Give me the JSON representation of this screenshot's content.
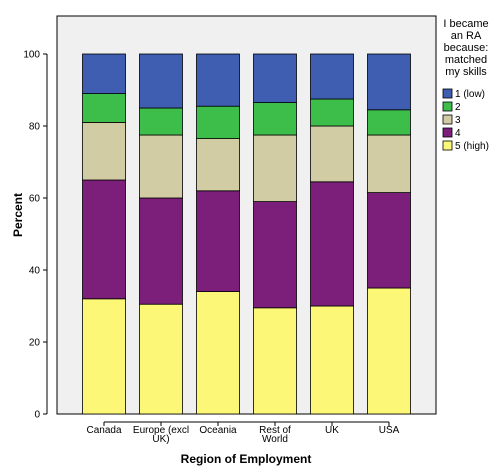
{
  "chart_data": {
    "type": "bar",
    "stacked": true,
    "xlabel": "Region of Employment",
    "ylabel": "Percent",
    "ylim": [
      0,
      100
    ],
    "yticks": [
      0,
      20,
      40,
      60,
      80,
      100
    ],
    "grid": false,
    "legend_position": "right",
    "legend_title_lines": [
      "I became",
      "an RA",
      "because:",
      "matched",
      "my skills"
    ],
    "categories": [
      {
        "lines": [
          "Canada"
        ]
      },
      {
        "lines": [
          "Europe (excl",
          "UK)"
        ]
      },
      {
        "lines": [
          "Oceania"
        ]
      },
      {
        "lines": [
          "Rest of",
          "World"
        ]
      },
      {
        "lines": [
          "UK"
        ]
      },
      {
        "lines": [
          "USA"
        ]
      }
    ],
    "series": [
      {
        "name": "5 (high)",
        "color": "#FCF777",
        "values": [
          32,
          30.5,
          34,
          29.5,
          30,
          35
        ]
      },
      {
        "name": "4",
        "color": "#7B1F7B",
        "values": [
          33,
          29.5,
          28,
          29.5,
          34.5,
          26.5
        ]
      },
      {
        "name": "3",
        "color": "#D1CCA3",
        "values": [
          16,
          17.5,
          14.5,
          18.5,
          15.5,
          16
        ]
      },
      {
        "name": "2",
        "color": "#3DBE4A",
        "values": [
          8,
          7.5,
          9,
          9,
          7.5,
          7
        ]
      },
      {
        "name": "1 (low)",
        "color": "#3F5EB2",
        "values": [
          11,
          15,
          14.5,
          13.5,
          12.5,
          15.5
        ]
      }
    ],
    "legend_order": [
      4,
      3,
      2,
      1,
      0
    ]
  }
}
